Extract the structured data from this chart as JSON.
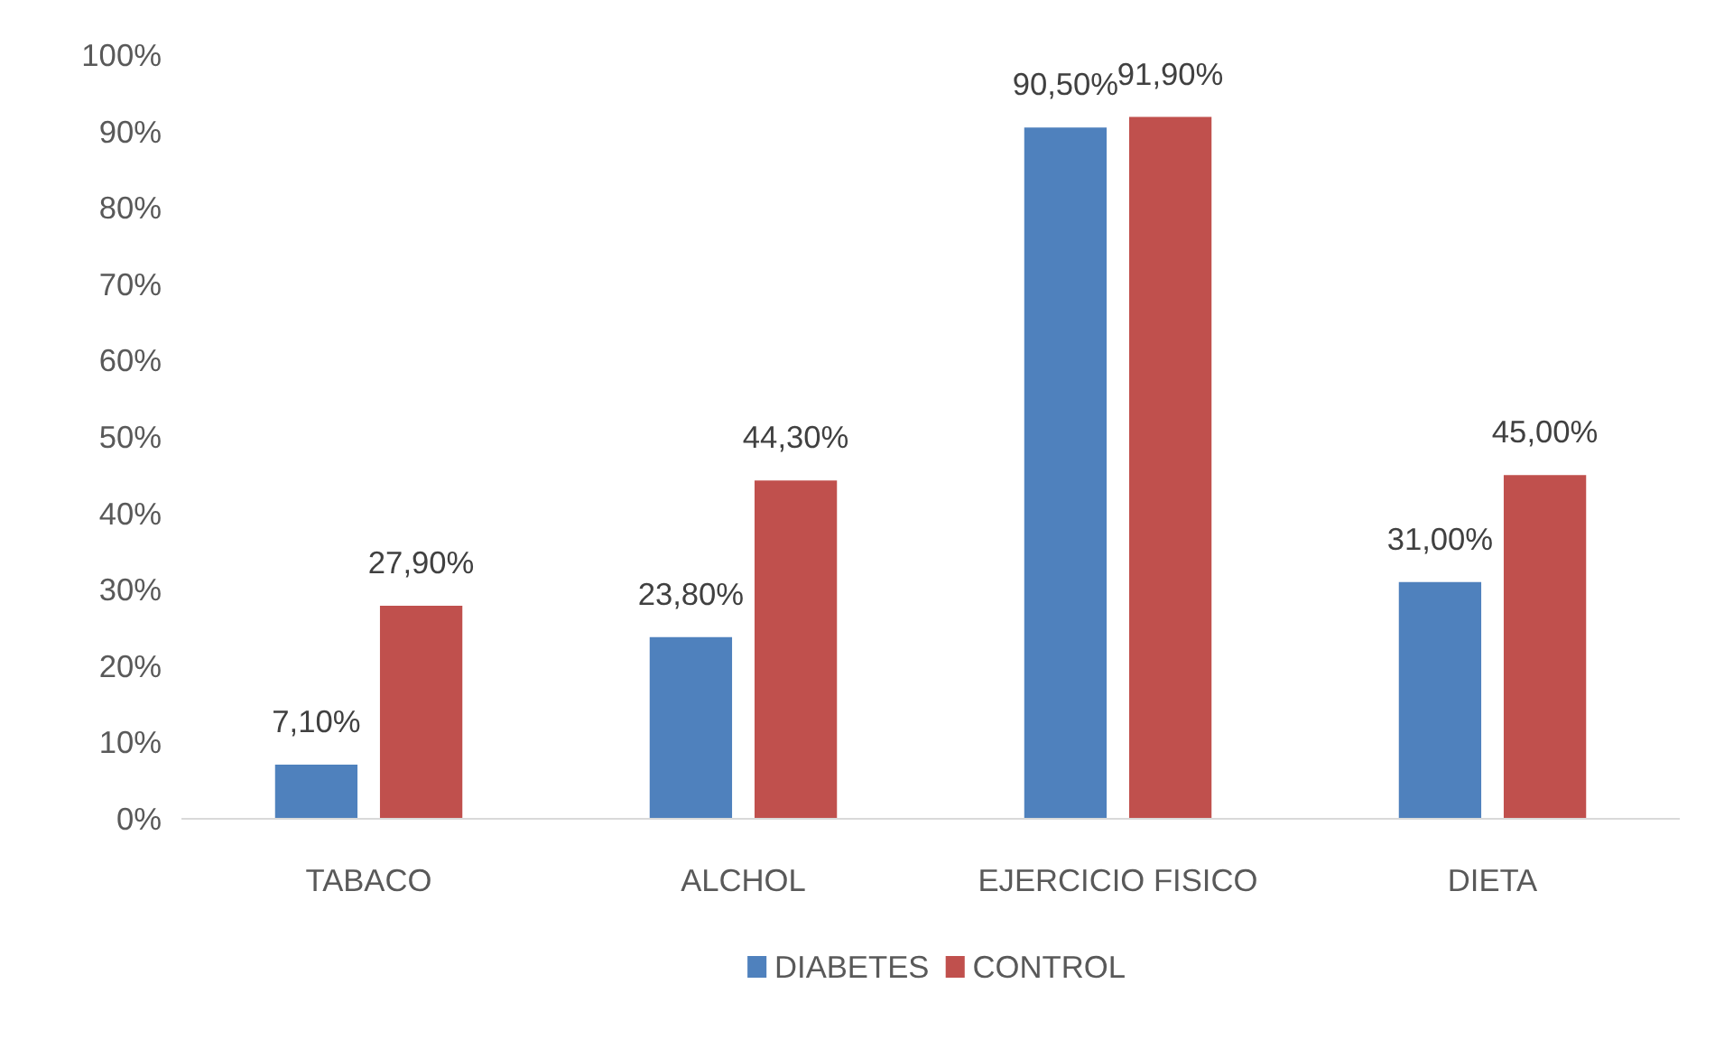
{
  "chart_data": {
    "type": "bar",
    "categories": [
      "TABACO",
      "ALCHOL",
      "EJERCICIO FISICO",
      "DIETA"
    ],
    "series": [
      {
        "name": "DIABETES",
        "color": "#4f81bd",
        "values": [
          7.1,
          23.8,
          90.5,
          31.0
        ],
        "value_labels": [
          "7,10%",
          "23,80%",
          "90,50%",
          "31,00%"
        ]
      },
      {
        "name": "CONTROL",
        "color": "#c0504d",
        "values": [
          27.9,
          44.3,
          91.9,
          45.0
        ],
        "value_labels": [
          "27,90%",
          "44,30%",
          "91,90%",
          "45,00%"
        ]
      }
    ],
    "ylim": [
      0,
      100
    ],
    "yticks": [
      {
        "value": 0,
        "label": "0%"
      },
      {
        "value": 10,
        "label": "10%"
      },
      {
        "value": 20,
        "label": "20%"
      },
      {
        "value": 30,
        "label": "30%"
      },
      {
        "value": 40,
        "label": "40%"
      },
      {
        "value": 50,
        "label": "50%"
      },
      {
        "value": 60,
        "label": "60%"
      },
      {
        "value": 70,
        "label": "70%"
      },
      {
        "value": 80,
        "label": "80%"
      },
      {
        "value": 90,
        "label": "90%"
      },
      {
        "value": 100,
        "label": "100%"
      }
    ],
    "grid": false,
    "legend": "bottom"
  }
}
